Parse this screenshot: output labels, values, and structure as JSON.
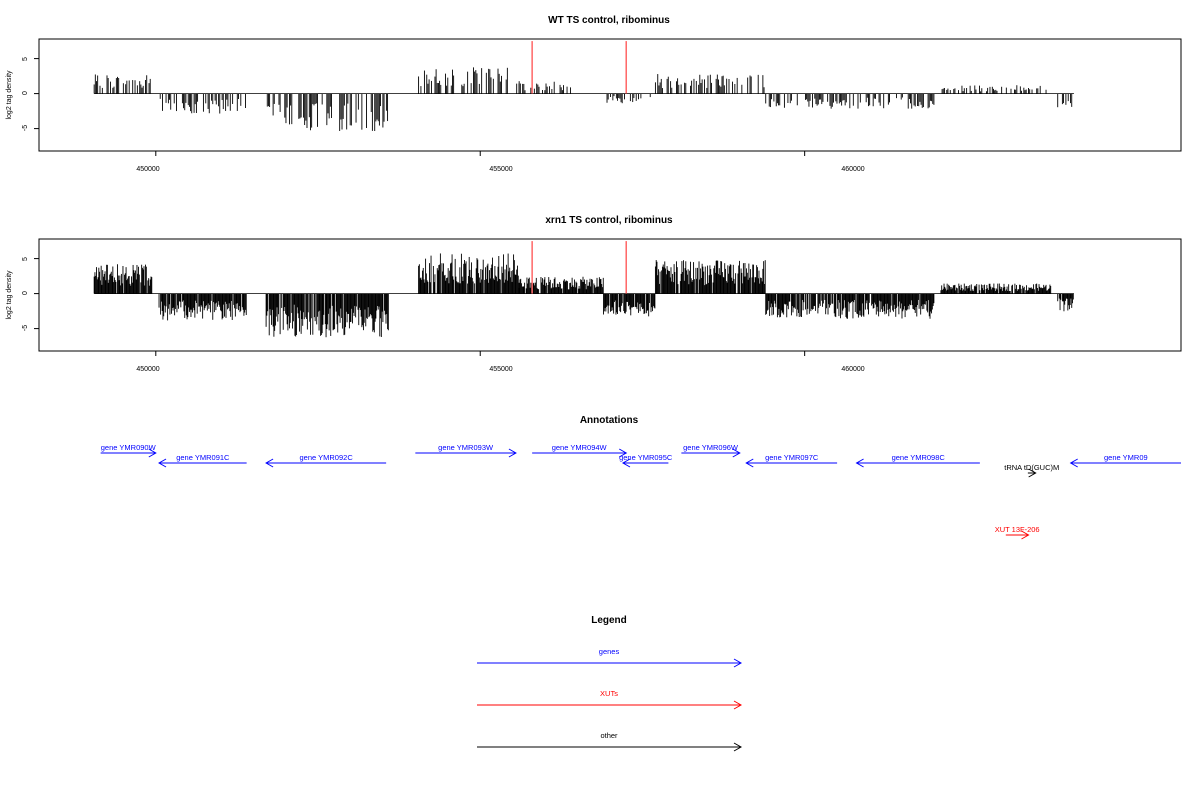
{
  "colors": {
    "gene": "#0000ff",
    "xut": "#ff0000",
    "other": "#000000",
    "marker": "#ff6666",
    "bars": "#000000",
    "frame": "#000000"
  },
  "chart_data": [
    {
      "type": "bar",
      "title": "WT TS control, ribominus",
      "ylabel": "log2 tag density",
      "xlim": [
        448200,
        465800
      ],
      "ylim": [
        -8.2,
        7.8
      ],
      "xticks": [
        450000,
        455000,
        460000
      ],
      "xtick_labels": [
        "450000",
        "455000",
        "460000"
      ],
      "yticks": [
        -5,
        0,
        5
      ],
      "ytick_labels": [
        "-5",
        "0",
        "5"
      ],
      "markers_x": [
        455800,
        457250
      ],
      "regions": [
        {
          "start": 449050,
          "end": 449950,
          "sign": 1,
          "amp": 2.3
        },
        {
          "start": 450050,
          "end": 451400,
          "sign": -1,
          "amp": 2.5
        },
        {
          "start": 451700,
          "end": 453600,
          "sign": -1,
          "amp": 4.5
        },
        {
          "start": 454050,
          "end": 455600,
          "sign": 1,
          "amp": 3.2
        },
        {
          "start": 455600,
          "end": 456400,
          "sign": 1,
          "amp": 1.5
        },
        {
          "start": 456900,
          "end": 457700,
          "sign": -1,
          "amp": 1.2
        },
        {
          "start": 457700,
          "end": 459400,
          "sign": 1,
          "amp": 2.4
        },
        {
          "start": 459400,
          "end": 462000,
          "sign": -1,
          "amp": 1.8
        },
        {
          "start": 462100,
          "end": 463800,
          "sign": 1,
          "amp": 1.0
        },
        {
          "start": 463900,
          "end": 464150,
          "sign": -1,
          "amp": 2.0
        }
      ]
    },
    {
      "type": "bar",
      "title": "xrn1 TS control, ribominus",
      "ylabel": "log2 tag density",
      "xlim": [
        448200,
        465800
      ],
      "ylim": [
        -8.2,
        7.8
      ],
      "xticks": [
        450000,
        455000,
        460000
      ],
      "xtick_labels": [
        "450000",
        "455000",
        "460000"
      ],
      "yticks": [
        -5,
        0,
        5
      ],
      "ytick_labels": [
        "-5",
        "0",
        "5"
      ],
      "markers_x": [
        455800,
        457250
      ],
      "regions": [
        {
          "start": 449050,
          "end": 449950,
          "sign": 1,
          "amp": 3.5
        },
        {
          "start": 450050,
          "end": 451400,
          "sign": -1,
          "amp": 3.2
        },
        {
          "start": 451700,
          "end": 453600,
          "sign": -1,
          "amp": 5.2
        },
        {
          "start": 454050,
          "end": 455600,
          "sign": 1,
          "amp": 4.8
        },
        {
          "start": 455600,
          "end": 456900,
          "sign": 1,
          "amp": 2.0
        },
        {
          "start": 456900,
          "end": 457700,
          "sign": -1,
          "amp": 2.8
        },
        {
          "start": 457700,
          "end": 459400,
          "sign": 1,
          "amp": 4.0
        },
        {
          "start": 459400,
          "end": 462000,
          "sign": -1,
          "amp": 3.0
        },
        {
          "start": 462100,
          "end": 463800,
          "sign": 1,
          "amp": 1.2
        },
        {
          "start": 463900,
          "end": 464150,
          "sign": -1,
          "amp": 2.2
        }
      ]
    }
  ],
  "annotations": {
    "title": "Annotations",
    "features": [
      {
        "label": "gene YMR090W",
        "start": 449150,
        "end": 450000,
        "strand": "+",
        "kind": "gene",
        "row": 0
      },
      {
        "label": "gene YMR091C",
        "start": 450050,
        "end": 451400,
        "strand": "-",
        "kind": "gene",
        "row": 1
      },
      {
        "label": "gene YMR092C",
        "start": 451700,
        "end": 453550,
        "strand": "-",
        "kind": "gene",
        "row": 1
      },
      {
        "label": "gene YMR093W",
        "start": 454000,
        "end": 455550,
        "strand": "+",
        "kind": "gene",
        "row": 0
      },
      {
        "label": "gene YMR094W",
        "start": 455800,
        "end": 457250,
        "strand": "+",
        "kind": "gene",
        "row": 0
      },
      {
        "label": "gene YMR095C",
        "start": 457200,
        "end": 457900,
        "strand": "-",
        "kind": "gene",
        "row": 1
      },
      {
        "label": "gene YMR096W",
        "start": 458100,
        "end": 459000,
        "strand": "+",
        "kind": "gene",
        "row": 0
      },
      {
        "label": "gene YMR097C",
        "start": 459100,
        "end": 460500,
        "strand": "-",
        "kind": "gene",
        "row": 1
      },
      {
        "label": "gene YMR098C",
        "start": 460800,
        "end": 462700,
        "strand": "-",
        "kind": "gene",
        "row": 1
      },
      {
        "label": "gene YMR09",
        "start": 464100,
        "end": 465800,
        "strand": "-",
        "kind": "gene",
        "row": 1
      },
      {
        "label": "tRNA tD(GUC)M",
        "start": 463440,
        "end": 463560,
        "strand": "+",
        "kind": "other",
        "row": 2
      },
      {
        "label": "XUT 13F-206",
        "start": 463100,
        "end": 463450,
        "strand": "+",
        "kind": "xut",
        "row": 3
      }
    ]
  },
  "legend": {
    "title": "Legend",
    "items": [
      {
        "label": "genes",
        "kind": "gene"
      },
      {
        "label": "XUTs",
        "kind": "xut"
      },
      {
        "label": "other",
        "kind": "other"
      }
    ]
  }
}
